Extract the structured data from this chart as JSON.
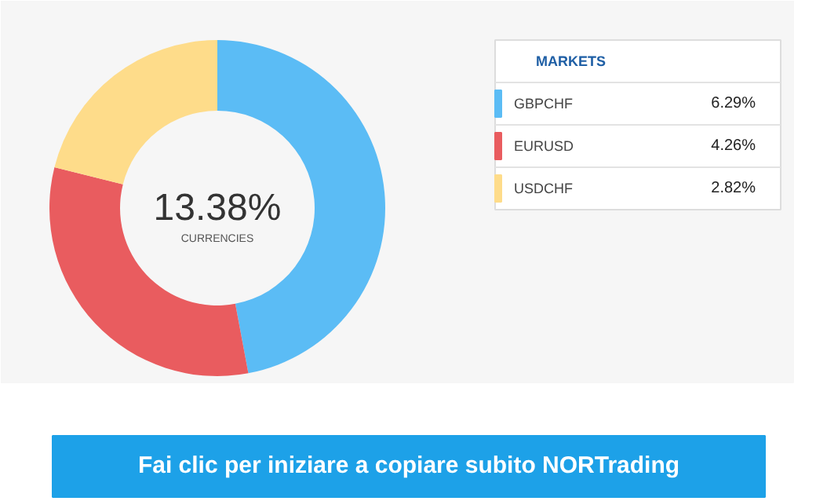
{
  "chart_data": {
    "type": "donut",
    "legend_title": "MARKETS",
    "categories": [
      "GBPCHF",
      "EURUSD",
      "USDCHF"
    ],
    "values": [
      6.29,
      4.26,
      2.82
    ],
    "colors": [
      "#5bbcf5",
      "#e95c5f",
      "#fedc8a"
    ],
    "value_labels": [
      "6.29%",
      "4.26%",
      "2.82%"
    ],
    "legend": "top right",
    "annotations": [
      "13.38%",
      "CURRENCIES",
      "Fai clic per iniziare a copiare subito NORTrading"
    ]
  }
}
